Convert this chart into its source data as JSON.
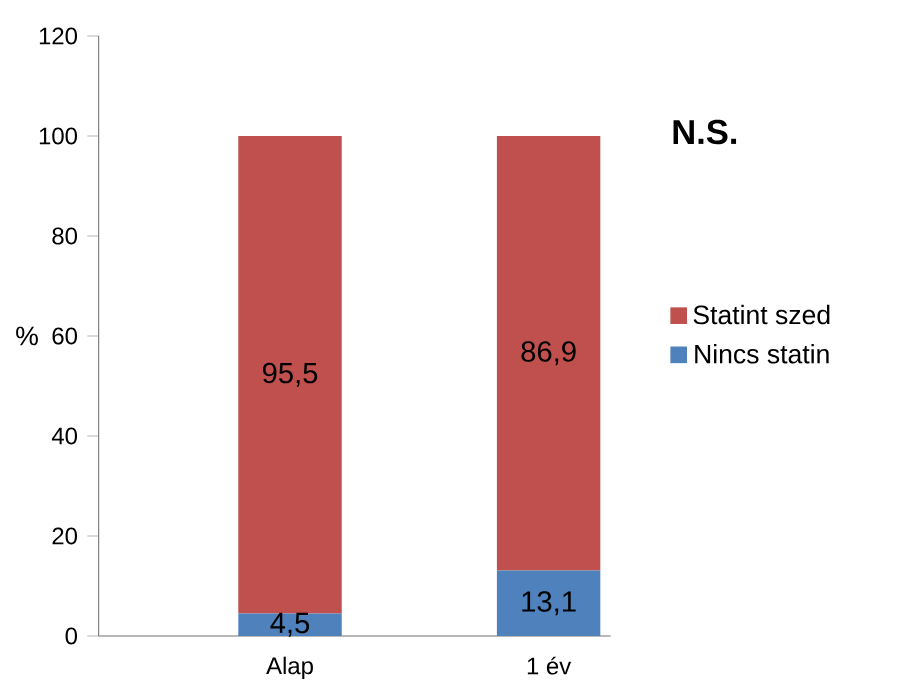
{
  "chart_data": {
    "type": "bar",
    "stacked": true,
    "ylabel": "%",
    "categories": [
      "Alap",
      "1 év"
    ],
    "series": [
      {
        "name": "Nincs statin",
        "color": "#4f81bd",
        "values": [
          4.5,
          13.1
        ],
        "value_labels": [
          "4,5",
          "13,1"
        ]
      },
      {
        "name": "Statint szed",
        "color": "#c0504d",
        "values": [
          95.5,
          86.9
        ],
        "value_labels": [
          "95,5",
          "86,9"
        ]
      }
    ],
    "ylim": [
      0,
      120
    ],
    "yticks": [
      0,
      20,
      40,
      60,
      80,
      100,
      120
    ],
    "grid": false,
    "legend": "right",
    "annotations": [
      "N.S."
    ]
  }
}
